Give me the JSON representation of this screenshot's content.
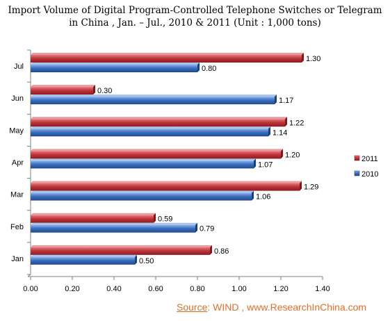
{
  "chart_data": {
    "type": "bar",
    "orientation": "horizontal",
    "title_line1": "Import Volume of Digital Program-Controlled Telephone Switches or Telegram",
    "title_line2": "in China , Jan. – Jul., 2010 & 2011 (Unit : 1,000 tons)",
    "categories": [
      "Jul",
      "Jun",
      "May",
      "Apr",
      "Mar",
      "Feb",
      "Jan"
    ],
    "series": [
      {
        "name": "2011",
        "color": "#c0343a",
        "values": [
          1.3,
          0.3,
          1.22,
          1.2,
          1.29,
          0.59,
          0.86
        ]
      },
      {
        "name": "2010",
        "color": "#3a6fc0",
        "values": [
          0.8,
          1.17,
          1.14,
          1.07,
          1.06,
          0.79,
          0.5
        ]
      }
    ],
    "value_labels": {
      "2011": [
        "1.30",
        "0.30",
        "1.22",
        "1.20",
        "1.29",
        "0.59",
        "0.86"
      ],
      "2010": [
        "0.80",
        "1.17",
        "1.14",
        "1.07",
        "1.06",
        "0.79",
        "0.50"
      ]
    },
    "xlim": [
      0,
      1.4
    ],
    "xticks": [
      "0.00",
      "0.20",
      "0.40",
      "0.60",
      "0.80",
      "1.00",
      "1.20",
      "1.40"
    ],
    "legend": [
      "2011",
      "2010"
    ],
    "legend_position": "right",
    "grid": false
  },
  "source": {
    "label": "Source",
    "text": ": WIND , www.ResearchInChina.com"
  }
}
